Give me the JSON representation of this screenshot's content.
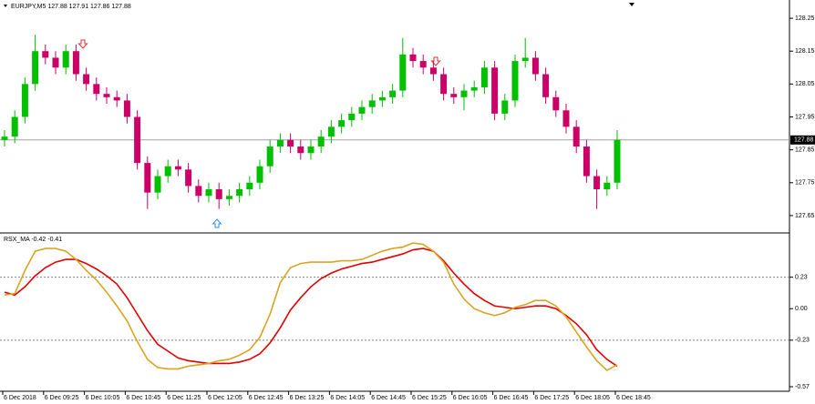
{
  "chart_data": [
    {
      "type": "candlestick",
      "title": "EURJPY,M5  127.88 127.91 127.86 127.88",
      "open": [
        127.88,
        127.89,
        127.95,
        128.05,
        128.15,
        128.13,
        128.1,
        128.15,
        128.08,
        128.05,
        128.02,
        128.01,
        128.0,
        127.95,
        127.81,
        127.72,
        127.77,
        127.8,
        127.79,
        127.74,
        127.71,
        127.73,
        127.7,
        127.71,
        127.73,
        127.75,
        127.8,
        127.86,
        127.88,
        127.86,
        127.84,
        127.86,
        127.89,
        127.92,
        127.94,
        127.96,
        127.98,
        128.0,
        128.01,
        128.03,
        128.14,
        128.12,
        128.1,
        128.08,
        128.02,
        128.01,
        128.03,
        128.04,
        128.1,
        127.96,
        128.0,
        128.12,
        128.13,
        128.08,
        128.01,
        127.97,
        127.92,
        127.86,
        127.77,
        127.73,
        127.75
      ],
      "high": [
        127.91,
        127.97,
        128.07,
        128.2,
        128.17,
        128.15,
        128.17,
        128.17,
        128.1,
        128.07,
        128.04,
        128.03,
        128.02,
        127.97,
        127.83,
        127.79,
        127.82,
        127.82,
        127.81,
        127.76,
        127.75,
        127.75,
        127.73,
        127.75,
        127.77,
        127.82,
        127.88,
        127.9,
        127.9,
        127.88,
        127.88,
        127.91,
        127.94,
        127.96,
        127.98,
        128.0,
        128.02,
        128.03,
        128.05,
        128.19,
        128.16,
        128.14,
        128.12,
        128.1,
        128.04,
        128.05,
        128.06,
        128.12,
        128.12,
        128.02,
        128.14,
        128.19,
        128.15,
        128.1,
        128.03,
        127.99,
        127.94,
        127.88,
        127.79,
        127.77,
        127.91
      ],
      "low": [
        127.86,
        127.87,
        127.93,
        128.03,
        128.11,
        128.08,
        128.08,
        128.06,
        128.03,
        128.0,
        127.99,
        127.98,
        127.93,
        127.79,
        127.67,
        127.7,
        127.75,
        127.77,
        127.72,
        127.69,
        127.69,
        127.67,
        127.68,
        127.69,
        127.71,
        127.73,
        127.78,
        127.84,
        127.84,
        127.82,
        127.82,
        127.84,
        127.87,
        127.9,
        127.92,
        127.94,
        127.96,
        127.98,
        127.99,
        128.01,
        128.1,
        128.08,
        128.06,
        128.0,
        127.99,
        127.97,
        128.01,
        128.02,
        127.94,
        127.94,
        127.98,
        128.1,
        128.06,
        127.99,
        127.95,
        127.9,
        127.84,
        127.75,
        127.67,
        127.71,
        127.73
      ],
      "close": [
        127.89,
        127.95,
        128.05,
        128.15,
        128.13,
        128.1,
        128.15,
        128.08,
        128.05,
        128.02,
        128.01,
        128.0,
        127.95,
        127.81,
        127.72,
        127.77,
        127.8,
        127.79,
        127.74,
        127.71,
        127.73,
        127.7,
        127.71,
        127.73,
        127.75,
        127.8,
        127.86,
        127.88,
        127.86,
        127.84,
        127.86,
        127.89,
        127.92,
        127.94,
        127.96,
        127.98,
        128.0,
        128.01,
        128.03,
        128.14,
        128.12,
        128.1,
        128.08,
        128.02,
        128.01,
        128.03,
        128.04,
        128.1,
        127.96,
        128.0,
        128.12,
        128.13,
        128.08,
        128.01,
        127.97,
        127.92,
        127.86,
        127.77,
        127.73,
        127.75,
        127.88
      ],
      "up_color": "#00c000",
      "down_color": "#cc0066",
      "ylim": [
        127.6,
        128.3
      ],
      "yticks": [
        128.25,
        128.15,
        128.05,
        127.95,
        127.85,
        127.75,
        127.65
      ],
      "last_price": 127.88
    },
    {
      "type": "line",
      "title": "RSX_MA -0.42 -0.41",
      "categories": [
        "6 Dec 2018",
        null,
        null,
        null,
        "6 Dec 09:25",
        null,
        null,
        null,
        "6 Dec 10:05",
        null,
        null,
        null,
        "6 Dec 10:45",
        null,
        null,
        null,
        "6 Dec 11:25",
        null,
        null,
        null,
        "6 Dec 12:05",
        null,
        null,
        null,
        "6 Dec 12:45",
        null,
        null,
        null,
        "6 Dec 13:25",
        null,
        null,
        null,
        "6 Dec 14:05",
        null,
        null,
        null,
        "6 Dec 14:45",
        null,
        null,
        null,
        "6 Dec 15:25",
        null,
        null,
        null,
        "6 Dec 16:05",
        null,
        null,
        null,
        "6 Dec 16:45",
        null,
        null,
        null,
        "6 Dec 17:25",
        null,
        null,
        null,
        "6 Dec 18:05",
        null,
        null,
        null,
        "6 Dec 18:45"
      ],
      "series": [
        {
          "color": "#e00000",
          "values": [
            0.12,
            0.1,
            0.16,
            0.24,
            0.3,
            0.34,
            0.36,
            0.36,
            0.33,
            0.29,
            0.24,
            0.18,
            0.08,
            -0.04,
            -0.16,
            -0.26,
            -0.31,
            -0.36,
            -0.38,
            -0.39,
            -0.4,
            -0.4,
            -0.4,
            -0.39,
            -0.37,
            -0.33,
            -0.25,
            -0.14,
            -0.01,
            0.08,
            0.16,
            0.22,
            0.26,
            0.29,
            0.31,
            0.33,
            0.34,
            0.36,
            0.38,
            0.4,
            0.43,
            0.44,
            0.42,
            0.35,
            0.26,
            0.18,
            0.11,
            0.06,
            0.02,
            0.01,
            0.0,
            0.01,
            0.02,
            0.02,
            0.0,
            -0.05,
            -0.11,
            -0.19,
            -0.3,
            -0.37,
            -0.42
          ]
        },
        {
          "color": "#d9a520",
          "values": [
            0.1,
            0.11,
            0.28,
            0.42,
            0.44,
            0.44,
            0.42,
            0.36,
            0.28,
            0.21,
            0.12,
            0.02,
            -0.09,
            -0.24,
            -0.37,
            -0.43,
            -0.44,
            -0.44,
            -0.42,
            -0.41,
            -0.4,
            -0.38,
            -0.37,
            -0.34,
            -0.3,
            -0.21,
            -0.04,
            0.19,
            0.3,
            0.33,
            0.34,
            0.34,
            0.34,
            0.35,
            0.35,
            0.36,
            0.39,
            0.42,
            0.44,
            0.45,
            0.48,
            0.47,
            0.42,
            0.34,
            0.18,
            0.07,
            0.0,
            -0.03,
            -0.05,
            -0.03,
            0.01,
            0.03,
            0.06,
            0.06,
            0.02,
            -0.06,
            -0.17,
            -0.28,
            -0.38,
            -0.45,
            -0.41
          ]
        }
      ],
      "ylim": [
        -0.57,
        0.54
      ],
      "yticks": [
        0.23,
        {
          "value": 0,
          "label": "0.00"
        },
        -0.23,
        -0.57
      ],
      "levels": [
        0.23,
        -0.23
      ]
    }
  ]
}
